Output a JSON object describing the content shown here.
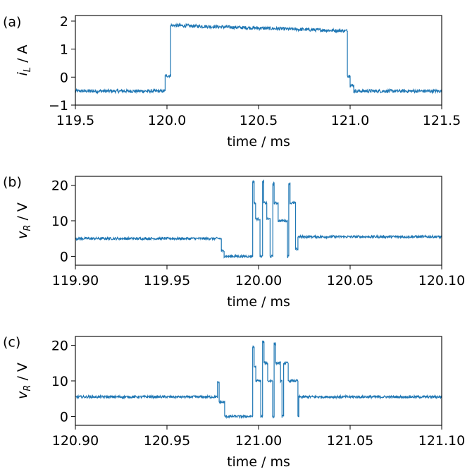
{
  "chart_data": [
    {
      "type": "line",
      "panel_label": "(a)",
      "xlabel": "time / ms",
      "ylabel_main": "i",
      "ylabel_sub": "L",
      "ylabel_rest": " / A",
      "xlim": [
        119.5,
        121.5
      ],
      "ylim": [
        -1,
        2.2
      ],
      "xticks": [
        119.5,
        120.0,
        120.5,
        121.0,
        121.5
      ],
      "xtick_labels": [
        "119.5",
        "120.0",
        "120.5",
        "121.0",
        "121.5"
      ],
      "yticks": [
        -1,
        0,
        1,
        2
      ],
      "ytick_labels": [
        "−1",
        "0",
        "1",
        "2"
      ],
      "line_color": "#1f77b4",
      "noise": 0.06,
      "x": [
        119.5,
        119.99,
        119.99,
        120.02,
        120.02,
        120.985,
        120.985,
        121.0,
        121.0,
        121.02,
        121.02,
        121.5
      ],
      "y": [
        -0.5,
        -0.5,
        0.05,
        0.05,
        1.85,
        1.65,
        0.05,
        0.05,
        -0.3,
        -0.3,
        -0.5,
        -0.5
      ]
    },
    {
      "type": "line",
      "panel_label": "(b)",
      "xlabel": "time / ms",
      "ylabel_main": "v",
      "ylabel_sub": "R",
      "ylabel_rest": " / V",
      "xlim": [
        119.9,
        120.1
      ],
      "ylim": [
        -2.5,
        22.5
      ],
      "xticks": [
        119.9,
        119.95,
        120.0,
        120.05,
        120.1
      ],
      "xtick_labels": [
        "119.90",
        "119.95",
        "120.00",
        "120.05",
        "120.10"
      ],
      "yticks": [
        0,
        10,
        20
      ],
      "ytick_labels": [
        "0",
        "10",
        "20"
      ],
      "line_color": "#1f77b4",
      "noise": 0.35,
      "x": [
        119.9,
        119.9797,
        119.9797,
        119.9812,
        119.9812,
        119.9968,
        119.9968,
        119.9976,
        119.9976,
        119.9984,
        119.9984,
        120.0008,
        120.0008,
        120.0022,
        120.0022,
        120.0028,
        120.0028,
        120.0045,
        120.0045,
        120.0063,
        120.0063,
        120.0078,
        120.0078,
        120.0085,
        120.0085,
        120.0107,
        120.0107,
        120.0158,
        120.0158,
        120.0165,
        120.0165,
        120.0172,
        120.0172,
        120.0202,
        120.0202,
        120.0215,
        120.0215,
        120.1
      ],
      "y": [
        5,
        5,
        1.5,
        1.5,
        0,
        0,
        21,
        21,
        15,
        15,
        10.5,
        10.5,
        0,
        0,
        21,
        21,
        15,
        15,
        10.5,
        10.5,
        0,
        0,
        20.5,
        20.5,
        15,
        15,
        10,
        10,
        0,
        0,
        20.5,
        20.5,
        15,
        15,
        2,
        2,
        5.5,
        5.5
      ]
    },
    {
      "type": "line",
      "panel_label": "(c)",
      "xlabel": "time / ms",
      "ylabel_main": "v",
      "ylabel_sub": "R",
      "ylabel_rest": " / V",
      "xlim": [
        120.9,
        121.1
      ],
      "ylim": [
        -2.5,
        22.5
      ],
      "xticks": [
        120.9,
        120.95,
        121.0,
        121.05,
        121.1
      ],
      "xtick_labels": [
        "120.90",
        "120.95",
        "121.00",
        "121.05",
        "121.10"
      ],
      "yticks": [
        0,
        10,
        20
      ],
      "ytick_labels": [
        "0",
        "10",
        "20"
      ],
      "line_color": "#1f77b4",
      "noise": 0.35,
      "x": [
        120.9,
        120.9776,
        120.9776,
        120.9785,
        120.9785,
        120.9815,
        120.9815,
        120.9968,
        120.9968,
        120.9976,
        120.9976,
        120.9985,
        120.9985,
        121.0012,
        121.0012,
        121.0022,
        121.0022,
        121.003,
        121.003,
        121.005,
        121.005,
        121.0077,
        121.0077,
        121.0085,
        121.0085,
        121.0093,
        121.0093,
        121.012,
        121.012,
        121.0128,
        121.0128,
        121.0137,
        121.0137,
        121.0162,
        121.0162,
        121.0215,
        121.0215,
        121.022,
        121.022,
        121.1
      ],
      "y": [
        5.5,
        5.5,
        9.5,
        9.5,
        4,
        4,
        0,
        0,
        19.5,
        19.5,
        14,
        14,
        10,
        10,
        0,
        0,
        21,
        21,
        15,
        15,
        10,
        10,
        0,
        0,
        20.5,
        20.5,
        15,
        15,
        10,
        10,
        0,
        0,
        15,
        15,
        10,
        10,
        0,
        0,
        5.5,
        5.5
      ]
    }
  ]
}
